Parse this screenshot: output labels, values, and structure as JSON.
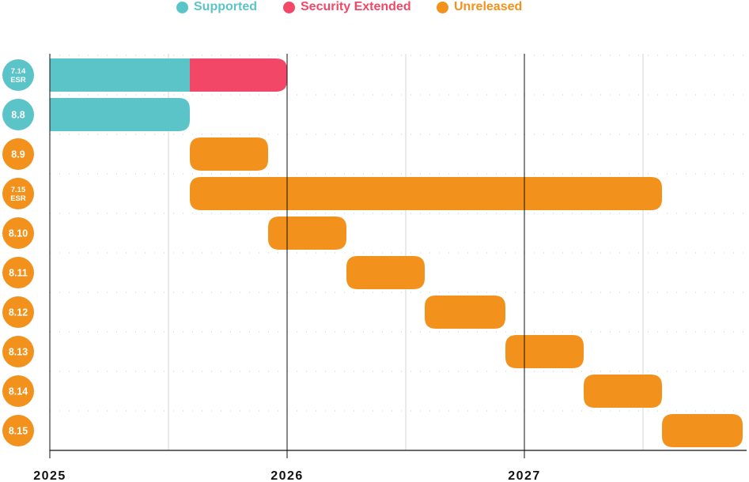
{
  "chart_data": {
    "type": "gantt",
    "legend": [
      {
        "key": "supported",
        "label": "Supported",
        "color": "#5bc4c9"
      },
      {
        "key": "security",
        "label": "Security Extended",
        "color": "#f24766"
      },
      {
        "key": "unreleased",
        "label": "Unreleased",
        "color": "#f2911c"
      }
    ],
    "x_ticks": [
      "2025",
      "2026",
      "2027"
    ],
    "x_range": [
      2025.0,
      2027.95
    ],
    "rows": [
      {
        "label_lines": [
          "7.14",
          "ESR"
        ],
        "badge_color": "#5bc4c9",
        "segments": [
          {
            "status": "supported",
            "start": 2025.0,
            "end": 2025.59
          },
          {
            "status": "security",
            "start": 2025.59,
            "end": 2026.0
          }
        ]
      },
      {
        "label_lines": [
          "8.8"
        ],
        "badge_color": "#5bc4c9",
        "segments": [
          {
            "status": "supported",
            "start": 2025.0,
            "end": 2025.59
          }
        ]
      },
      {
        "label_lines": [
          "8.9"
        ],
        "badge_color": "#f2911c",
        "segments": [
          {
            "status": "unreleased",
            "start": 2025.59,
            "end": 2025.92
          }
        ]
      },
      {
        "label_lines": [
          "7.15",
          "ESR"
        ],
        "badge_color": "#f2911c",
        "segments": [
          {
            "status": "unreleased",
            "start": 2025.59,
            "end": 2027.58
          }
        ]
      },
      {
        "label_lines": [
          "8.10"
        ],
        "badge_color": "#f2911c",
        "segments": [
          {
            "status": "unreleased",
            "start": 2025.92,
            "end": 2026.25
          }
        ]
      },
      {
        "label_lines": [
          "8.11"
        ],
        "badge_color": "#f2911c",
        "segments": [
          {
            "status": "unreleased",
            "start": 2026.25,
            "end": 2026.58
          }
        ]
      },
      {
        "label_lines": [
          "8.12"
        ],
        "badge_color": "#f2911c",
        "segments": [
          {
            "status": "unreleased",
            "start": 2026.58,
            "end": 2026.92
          }
        ]
      },
      {
        "label_lines": [
          "8.13"
        ],
        "badge_color": "#f2911c",
        "segments": [
          {
            "status": "unreleased",
            "start": 2026.92,
            "end": 2027.25
          }
        ]
      },
      {
        "label_lines": [
          "8.14"
        ],
        "badge_color": "#f2911c",
        "segments": [
          {
            "status": "unreleased",
            "start": 2027.25,
            "end": 2027.58
          }
        ]
      },
      {
        "label_lines": [
          "8.15"
        ],
        "badge_color": "#f2911c",
        "segments": [
          {
            "status": "unreleased",
            "start": 2027.58,
            "end": 2027.92
          }
        ]
      }
    ]
  }
}
